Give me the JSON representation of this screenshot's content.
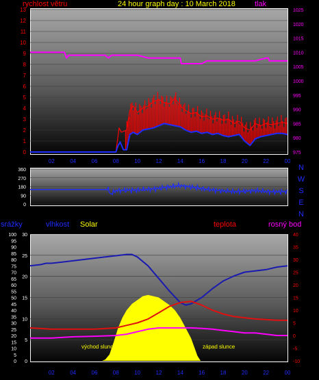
{
  "header": {
    "wind_label": "rychlost větru",
    "title": "24 hour graph day : 10 March 2018",
    "pressure_label": "tlak"
  },
  "lower_header": {
    "rain_label": "srážky",
    "humidity_label": "vlhkost",
    "solar_label": "Solar",
    "temp_label": "teplota",
    "dew_label": "rosný bod"
  },
  "annotations": {
    "sunrise": "východ slunce",
    "sunset": "západ slunce"
  },
  "colors": {
    "wind": "#ff0000",
    "gust": "#ff0000",
    "wind_avg": "#1e2cff",
    "pressure": "#ff00ff",
    "direction": "#1e2cff",
    "humidity": "#1a1ab0",
    "temp": "#e01010",
    "dew": "#ff00ff",
    "solar": "#ffff00",
    "title": "#ffff00",
    "compass": "#1e2cff"
  },
  "chart_data": [
    {
      "type": "line",
      "title": "24 hour graph day : 10 March 2018",
      "x_ticks": [
        "02",
        "04",
        "06",
        "08",
        "10",
        "12",
        "14",
        "16",
        "18",
        "20",
        "22",
        "00"
      ],
      "x_range": [
        0,
        24
      ],
      "left_axis": {
        "label": "rychlost větru",
        "range": [
          0,
          13
        ],
        "ticks": [
          "0",
          "1",
          "2",
          "3",
          "4",
          "5",
          "6",
          "7",
          "8",
          "9",
          "10",
          "11",
          "12",
          "13"
        ]
      },
      "right_axis": {
        "label": "tlak",
        "range": [
          975,
          1025
        ],
        "ticks": [
          "975",
          "980",
          "985",
          "990",
          "995",
          "1000",
          "1005",
          "1010",
          "1015",
          "1020",
          "1025"
        ]
      },
      "series": [
        {
          "name": "tlak",
          "axis": "right",
          "x": [
            0,
            3.2,
            3.4,
            3.6,
            6,
            7,
            7.3,
            7.6,
            10,
            11,
            14,
            14.1,
            15,
            16,
            16.5,
            19,
            21,
            22,
            22.2,
            22.3,
            22.6,
            24
          ],
          "y": [
            1010,
            1010,
            1008,
            1009,
            1009,
            1009,
            1008,
            1009,
            1009,
            1008,
            1008,
            1006,
            1006,
            1006,
            1007,
            1007,
            1007,
            1008,
            1008,
            1007,
            1007,
            1007
          ]
        },
        {
          "name": "wind_avg",
          "axis": "left",
          "x": [
            0,
            8,
            8.2,
            8.4,
            8.7,
            9,
            9.3,
            9.6,
            10,
            10.5,
            11,
            11.5,
            12,
            12.5,
            13,
            13.5,
            14,
            14.5,
            15,
            15.5,
            16,
            16.5,
            17,
            17.5,
            18,
            18.5,
            19,
            19.5,
            20,
            20.5,
            21,
            21.5,
            22,
            22.5,
            23,
            23.5,
            24
          ],
          "y": [
            0,
            0,
            0.6,
            0.9,
            0.2,
            0.2,
            1.6,
            1.8,
            1.6,
            2.0,
            2.1,
            2.2,
            2.4,
            2.6,
            2.5,
            2.4,
            2.3,
            2.0,
            1.8,
            1.9,
            1.7,
            1.8,
            1.6,
            1.7,
            1.5,
            1.4,
            1.5,
            1.6,
            1.0,
            0.6,
            1.2,
            1.4,
            1.5,
            1.6,
            1.7,
            1.7,
            1.6
          ]
        },
        {
          "name": "gust",
          "axis": "left",
          "x": [
            0,
            8,
            8.3,
            8.5,
            9,
            9.3,
            9.6,
            10,
            10.5,
            11,
            11.5,
            12,
            12.5,
            13,
            13.5,
            14,
            14.5,
            15,
            15.5,
            16,
            16.5,
            17,
            17.5,
            18,
            18.5,
            19,
            19.5,
            20,
            20.5,
            21,
            21.5,
            22,
            22.5,
            23,
            23.5,
            24
          ],
          "y": [
            0,
            0,
            2.2,
            1.8,
            2.0,
            3.8,
            4.2,
            3.6,
            4.0,
            4.2,
            4.6,
            4.8,
            4.5,
            4.4,
            4.9,
            4.2,
            3.8,
            3.5,
            3.6,
            3.2,
            3.3,
            3.0,
            3.1,
            2.9,
            3.0,
            2.6,
            2.8,
            2.2,
            2.0,
            2.6,
            2.4,
            2.6,
            2.5,
            2.6,
            2.7,
            2.6
          ]
        }
      ]
    },
    {
      "type": "line",
      "title": "wind direction",
      "x_range": [
        0,
        24
      ],
      "left_axis": {
        "range": [
          0,
          360
        ],
        "ticks": [
          "0",
          "90",
          "180",
          "270",
          "360"
        ]
      },
      "compass_labels": [
        "N",
        "W",
        "S",
        "E",
        "N"
      ],
      "series": [
        {
          "name": "direction",
          "x": [
            0,
            7,
            7.3,
            7.5,
            8,
            10,
            12,
            13,
            14,
            15,
            16,
            17,
            18,
            19,
            20,
            21,
            22,
            23,
            24
          ],
          "y": [
            150,
            150,
            150,
            100,
            140,
            145,
            160,
            180,
            190,
            175,
            160,
            145,
            135,
            130,
            130,
            140,
            130,
            125,
            130
          ]
        }
      ]
    },
    {
      "type": "line",
      "x_ticks": [
        "02",
        "04",
        "06",
        "08",
        "10",
        "12",
        "14",
        "16",
        "18",
        "20",
        "22",
        "00"
      ],
      "x_range": [
        0,
        24
      ],
      "axes": {
        "rain": {
          "label": "srážky",
          "range": [
            0,
            100
          ],
          "ticks": [
            "0",
            "5",
            "10",
            "15",
            "20",
            "25",
            "30",
            "35",
            "40",
            "45",
            "50",
            "55",
            "60",
            "65",
            "70",
            "75",
            "80",
            "85",
            "90",
            "95",
            "100"
          ]
        },
        "humidity": {
          "label": "vlhkost",
          "range": [
            0,
            30
          ],
          "ticks": [
            "0",
            "5",
            "10",
            "15",
            "20",
            "25",
            "30"
          ]
        },
        "temp": {
          "label": "teplota",
          "range": [
            -10,
            40
          ],
          "ticks": [
            "-10",
            "-5",
            "0",
            "5",
            "10",
            "15",
            "20",
            "25",
            "30",
            "35",
            "40"
          ]
        }
      },
      "series": [
        {
          "name": "vlhkost",
          "axis": "rain",
          "x": [
            0,
            1,
            1.5,
            2,
            3,
            4,
            5,
            6,
            7,
            8,
            9,
            9.5,
            10,
            11,
            12,
            13,
            14,
            14.5,
            15,
            16,
            17,
            18,
            19,
            20,
            21,
            22,
            23,
            24
          ],
          "y": [
            75,
            76,
            77,
            77,
            78,
            79,
            80,
            81,
            82,
            83,
            84,
            84,
            82,
            75,
            65,
            55,
            46,
            44,
            45,
            50,
            57,
            63,
            67,
            70,
            71,
            72,
            74,
            75
          ]
        },
        {
          "name": "teplota",
          "axis": "temp",
          "x": [
            0,
            2,
            4,
            6,
            8,
            9,
            10,
            11,
            12,
            13,
            14,
            15,
            16,
            17,
            18,
            19,
            20,
            21,
            22,
            23,
            24
          ],
          "y": [
            3,
            2.5,
            2.5,
            2.5,
            3,
            4,
            5,
            6.5,
            9,
            11.5,
            13,
            13.5,
            12,
            10,
            8.5,
            7.5,
            7,
            6.5,
            6.3,
            6,
            6
          ]
        },
        {
          "name": "rosný bod",
          "axis": "temp",
          "x": [
            0,
            2,
            4,
            6,
            8,
            9,
            10,
            11,
            12,
            13,
            14,
            15,
            16,
            17,
            18,
            19,
            20,
            21,
            22,
            23,
            24
          ],
          "y": [
            -1,
            -1,
            -0.5,
            -0.3,
            0,
            0.5,
            1.5,
            2.5,
            3,
            3,
            3,
            3,
            2.8,
            2.5,
            2,
            1.5,
            1,
            1,
            0.5,
            0,
            0
          ]
        },
        {
          "name": "Solar",
          "axis": "rain",
          "x": [
            6.7,
            7,
            7.4,
            7.8,
            8.2,
            8.6,
            9,
            9.5,
            10,
            10.5,
            11,
            11.5,
            12,
            12.5,
            13,
            13.5,
            14,
            14.5,
            15,
            15.3,
            15.6,
            15.9
          ],
          "y": [
            0,
            1,
            5,
            15,
            26,
            34,
            40,
            45,
            48,
            51,
            52,
            51,
            50,
            47,
            44,
            40,
            34,
            26,
            18,
            11,
            4,
            0
          ]
        }
      ]
    }
  ]
}
